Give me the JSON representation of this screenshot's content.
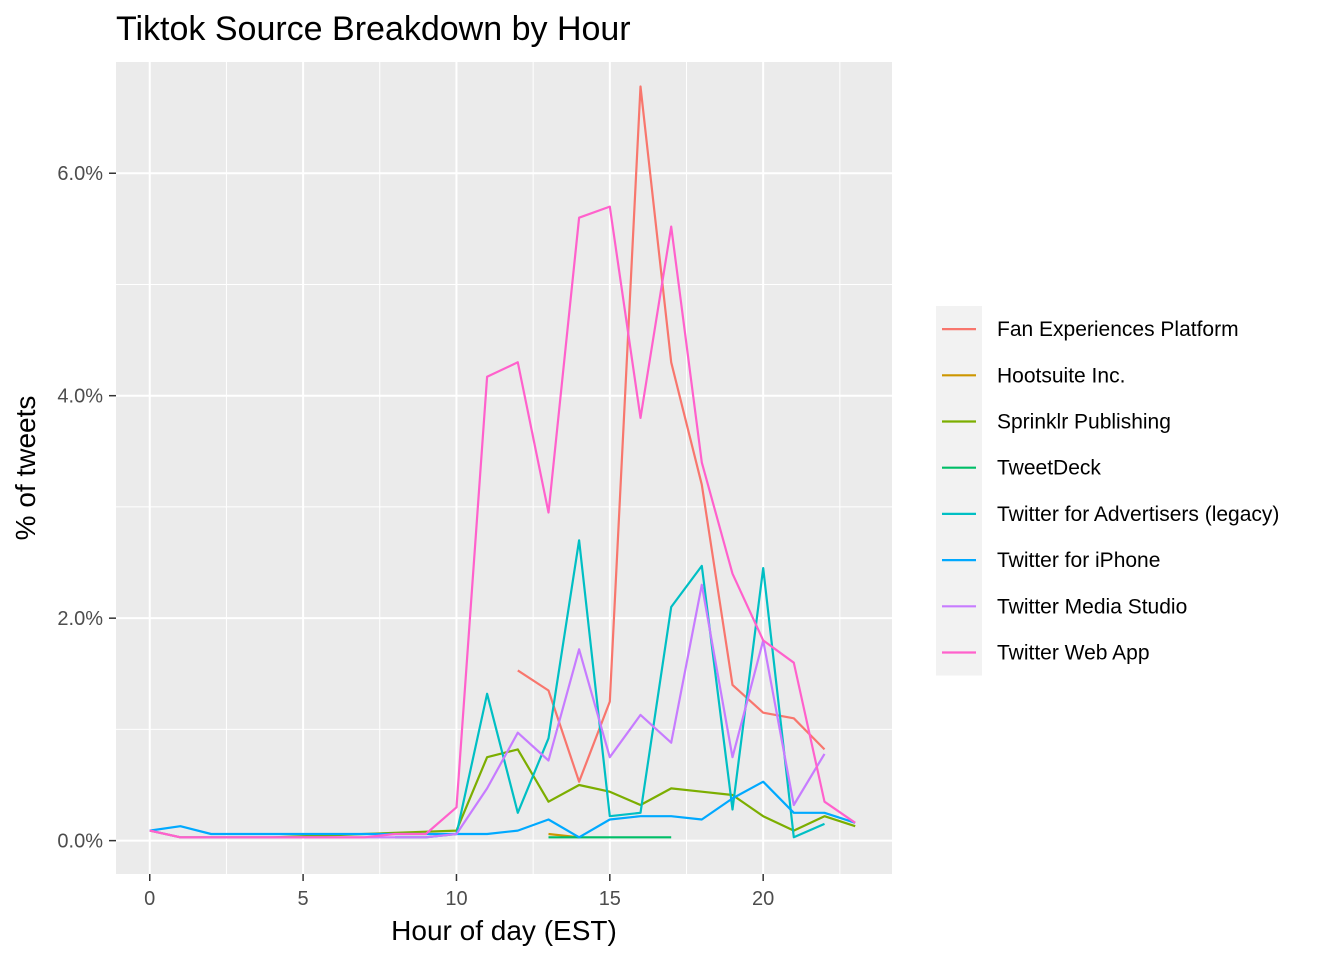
{
  "chart_data": {
    "type": "line",
    "title": "Tiktok Source Breakdown by Hour",
    "xlabel": "Hour of day (EST)",
    "ylabel": "% of tweets",
    "xlim": [
      -1.1,
      24.2
    ],
    "ylim": [
      -0.3,
      7.0
    ],
    "x_ticks": [
      0,
      5,
      10,
      15,
      20
    ],
    "x_tick_labels": [
      "0",
      "5",
      "10",
      "15",
      "20"
    ],
    "y_ticks": [
      0,
      2,
      4,
      6
    ],
    "y_tick_labels": [
      "0.0%",
      "2.0%",
      "4.0%",
      "6.0%"
    ],
    "grid": true,
    "legend_position": "right",
    "series": [
      {
        "name": "Fan Experiences Platform",
        "color": "#F8766D",
        "x": [
          12,
          13,
          14,
          15,
          16,
          17,
          18,
          19,
          20,
          21,
          22
        ],
        "y": [
          1.53,
          1.35,
          0.53,
          1.25,
          6.78,
          4.3,
          3.2,
          1.4,
          1.15,
          1.1,
          0.82
        ]
      },
      {
        "name": "Hootsuite Inc.",
        "color": "#CD9600",
        "x": [
          13,
          14
        ],
        "y": [
          0.06,
          0.03
        ]
      },
      {
        "name": "Sprinklr Publishing",
        "color": "#7CAE00",
        "x": [
          0,
          1,
          2,
          3,
          4,
          5,
          6,
          7,
          8,
          9,
          10,
          11,
          12,
          13,
          14,
          15,
          16,
          17,
          18,
          19,
          20,
          21,
          22,
          23
        ],
        "y": [
          0.09,
          0.03,
          0.03,
          0.03,
          0.03,
          0.04,
          0.05,
          0.06,
          0.07,
          0.08,
          0.09,
          0.75,
          0.82,
          0.35,
          0.5,
          0.44,
          0.32,
          0.47,
          0.44,
          0.41,
          0.22,
          0.09,
          0.22,
          0.13
        ]
      },
      {
        "name": "TweetDeck",
        "color": "#00BE67",
        "x": [
          13,
          14,
          15,
          16,
          17
        ],
        "y": [
          0.03,
          0.03,
          0.03,
          0.03,
          0.03
        ]
      },
      {
        "name": "Twitter for Advertisers (legacy)",
        "color": "#00BFC4",
        "x": [
          8,
          9,
          10,
          11,
          12,
          13,
          14,
          15,
          16,
          17,
          18,
          19,
          20,
          21,
          22
        ],
        "y": [
          0.03,
          0.03,
          0.06,
          1.32,
          0.25,
          0.92,
          2.7,
          0.22,
          0.25,
          2.1,
          2.47,
          0.28,
          2.45,
          0.03,
          0.15
        ]
      },
      {
        "name": "Twitter for iPhone",
        "color": "#00A9FF",
        "x": [
          0,
          1,
          2,
          3,
          4,
          5,
          6,
          7,
          8,
          9,
          10,
          11,
          12,
          13,
          14,
          15,
          16,
          17,
          18,
          19,
          20,
          21,
          22,
          23
        ],
        "y": [
          0.09,
          0.13,
          0.06,
          0.06,
          0.06,
          0.06,
          0.06,
          0.06,
          0.06,
          0.06,
          0.06,
          0.06,
          0.09,
          0.19,
          0.03,
          0.19,
          0.22,
          0.22,
          0.19,
          0.38,
          0.53,
          0.25,
          0.25,
          0.16
        ]
      },
      {
        "name": "Twitter Media Studio",
        "color": "#C77CFF",
        "x": [
          0,
          1,
          2,
          3,
          4,
          5,
          6,
          7,
          8,
          9,
          10,
          11,
          12,
          13,
          14,
          15,
          16,
          17,
          18,
          19,
          20,
          21,
          22
        ],
        "y": [
          0.09,
          0.03,
          0.03,
          0.03,
          0.03,
          0.03,
          0.03,
          0.03,
          0.03,
          0.03,
          0.06,
          0.47,
          0.97,
          0.72,
          1.72,
          0.75,
          1.13,
          0.88,
          2.3,
          0.75,
          1.8,
          0.32,
          0.78
        ]
      },
      {
        "name": "Twitter Web App",
        "color": "#FF61CC",
        "x": [
          0,
          1,
          2,
          3,
          4,
          5,
          6,
          7,
          8,
          9,
          10,
          11,
          12,
          13,
          14,
          15,
          16,
          17,
          18,
          19,
          20,
          21,
          22,
          23
        ],
        "y": [
          0.09,
          0.03,
          0.03,
          0.03,
          0.03,
          0.03,
          0.03,
          0.03,
          0.06,
          0.06,
          0.3,
          4.17,
          4.3,
          2.95,
          5.6,
          5.7,
          3.8,
          5.52,
          3.4,
          2.4,
          1.8,
          1.6,
          0.35,
          0.16
        ]
      }
    ]
  }
}
